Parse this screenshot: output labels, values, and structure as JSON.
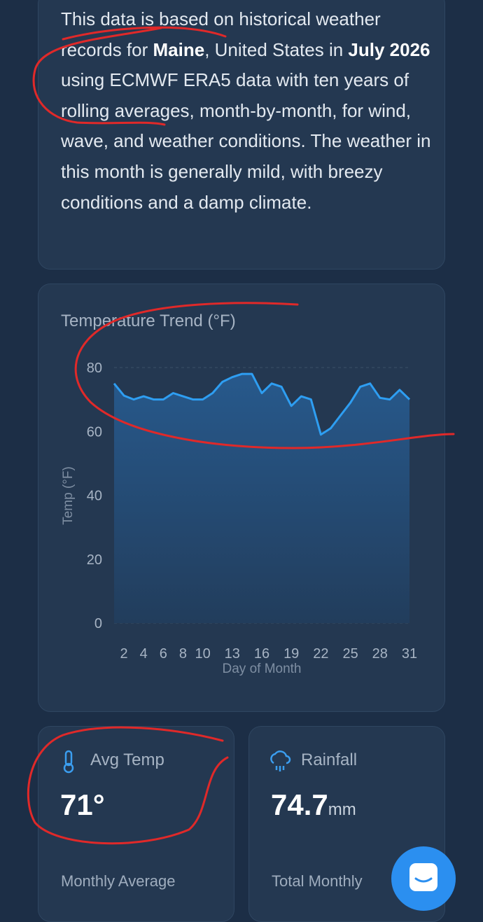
{
  "intro": {
    "parts": [
      "This data is based on historical weather records for ",
      "Maine",
      ", United States in ",
      "July 2026",
      " using ECMWF ERA5 data with ten years of rolling averages, month-by-month, for wind, wave, and weather conditions. The weather in this month is generally mild, with breezy conditions and a damp climate."
    ]
  },
  "chart_data": {
    "type": "area",
    "title": "Temperature Trend (°F)",
    "x_label": "Day of Month",
    "y_label": "Temp (°F)",
    "x": [
      1,
      2,
      3,
      4,
      5,
      6,
      7,
      8,
      9,
      10,
      11,
      12,
      13,
      14,
      15,
      16,
      17,
      18,
      19,
      20,
      21,
      22,
      23,
      24,
      25,
      26,
      27,
      28,
      29,
      30,
      31
    ],
    "series": [
      {
        "name": "Temp",
        "color": "#2e9ef2",
        "values": [
          75,
          71.2,
          70,
          71,
          70,
          70,
          72,
          71,
          70,
          70,
          72,
          75.5,
          77,
          78,
          78,
          72,
          75,
          74,
          68,
          71,
          70,
          59,
          61,
          65,
          69,
          74,
          75,
          70.5,
          70,
          73,
          70
        ]
      }
    ],
    "xlim": [
      1,
      31
    ],
    "xticks": [
      2,
      4,
      6,
      8,
      10,
      13,
      16,
      19,
      22,
      25,
      28,
      31
    ],
    "ylim": [
      0,
      80
    ],
    "yticks": [
      0,
      20,
      40,
      60,
      80
    ],
    "grid": true
  },
  "cards": [
    {
      "title": "Avg Temp",
      "value": "71°",
      "caption": "Monthly Average"
    },
    {
      "title": "Rainfall",
      "value": "74.7",
      "unit": "mm",
      "caption": "Total Monthly"
    }
  ]
}
